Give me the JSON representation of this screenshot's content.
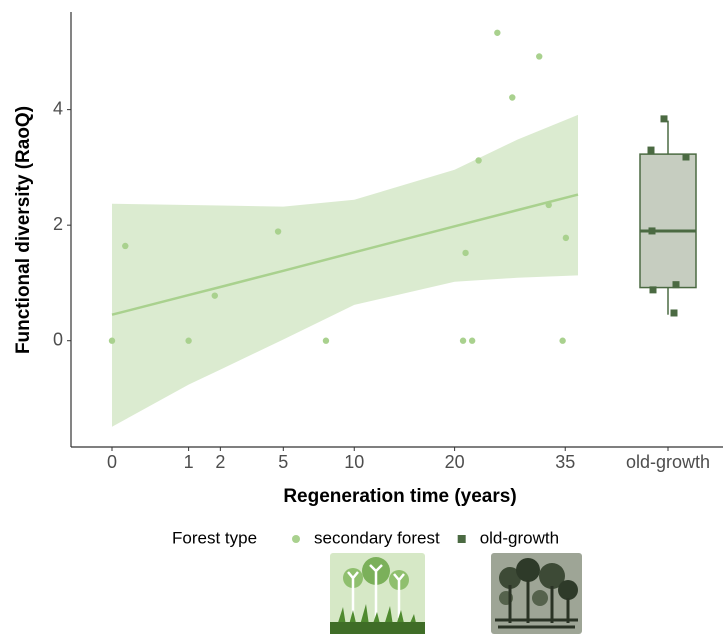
{
  "chart_data": {
    "type": "scatter",
    "x_label": "Regeneration time (years)",
    "y_label": "Functional diversity (RaoQ)",
    "x_scale": "sqrt",
    "xlim": [
      0,
      37
    ],
    "xticks": [
      0,
      1,
      2,
      5,
      10,
      20,
      35
    ],
    "ylim": [
      -1.84,
      5.69
    ],
    "yticks": [
      0,
      2,
      4
    ],
    "legend_title": "Forest type",
    "legend_position": "bottom",
    "series": [
      {
        "name": "secondary forest",
        "color": "#a9d18e",
        "x": [
          0,
          0.03,
          1,
          1.8,
          4.7,
          7.8,
          21,
          21.3,
          22.1,
          22.9,
          25.3,
          27.3,
          31.1,
          32.5,
          34.6,
          35.1
        ],
        "values": [
          0,
          1.64,
          0,
          0.78,
          1.89,
          0,
          0,
          1.52,
          0,
          3.12,
          5.33,
          4.21,
          4.92,
          2.35,
          0,
          1.78
        ]
      }
    ],
    "fit": {
      "color": "#a9d18e",
      "band_color": "#d7e9cb",
      "x": [
        0,
        1,
        2,
        5,
        10,
        20,
        28,
        37
      ],
      "y": [
        0.45,
        0.79,
        0.93,
        1.21,
        1.53,
        1.98,
        2.26,
        2.53
      ],
      "upper": [
        2.37,
        2.35,
        2.34,
        2.32,
        2.44,
        2.96,
        3.48,
        3.91
      ],
      "lower": [
        -1.49,
        -0.76,
        -0.5,
        0.02,
        0.62,
        1.02,
        1.09,
        1.13
      ]
    },
    "box": {
      "name": "old-growth",
      "category": "old-growth",
      "color": "#4b6a42",
      "fill": "#c6cdc0",
      "whisker_low": 0.45,
      "q1": 0.92,
      "median": 1.9,
      "q3": 3.23,
      "whisker_high": 3.81,
      "points": [
        3.84,
        3.3,
        3.18,
        1.9,
        0.88,
        0.97,
        0.48
      ]
    }
  }
}
